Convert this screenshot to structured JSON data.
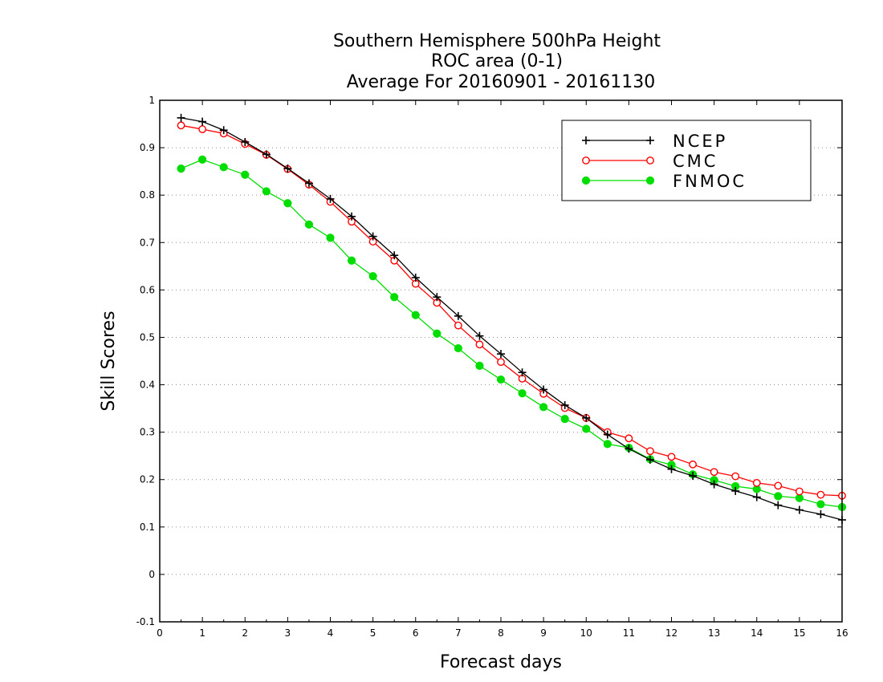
{
  "chart_data": {
    "type": "line",
    "title": [
      "Southern Hemisphere 500hPa Height",
      "ROC area (0-1)",
      "Average For 20160901 - 20161130"
    ],
    "xlabel": "Forecast days",
    "ylabel": "Skill Scores",
    "xlim": [
      0,
      16
    ],
    "ylim": [
      -0.1,
      1
    ],
    "xticks": [
      0,
      1,
      2,
      3,
      4,
      5,
      6,
      7,
      8,
      9,
      10,
      11,
      12,
      13,
      14,
      15,
      16
    ],
    "yticks": [
      -0.1,
      0,
      0.1,
      0.2,
      0.3,
      0.4,
      0.5,
      0.6,
      0.7,
      0.8,
      0.9,
      1
    ],
    "ytick_labels": [
      "-0.1",
      "0",
      "0.1",
      "0.2",
      "0.3",
      "0.4",
      "0.5",
      "0.6",
      "0.7",
      "0.8",
      "0.9",
      "1"
    ],
    "grid": "horizontal dotted",
    "legend_position": "top-right",
    "x": [
      0.5,
      1,
      1.5,
      2,
      2.5,
      3,
      3.5,
      4,
      4.5,
      5,
      5.5,
      6,
      6.5,
      7,
      7.5,
      8,
      8.5,
      9,
      9.5,
      10,
      10.5,
      11,
      11.5,
      12,
      12.5,
      13,
      13.5,
      14,
      14.5,
      15,
      15.5,
      16
    ],
    "series": [
      {
        "name": "NCEP",
        "color": "#000000",
        "marker": "plus",
        "values": [
          0.963,
          0.955,
          0.937,
          0.912,
          0.886,
          0.856,
          0.825,
          0.792,
          0.755,
          0.713,
          0.673,
          0.626,
          0.585,
          0.545,
          0.503,
          0.465,
          0.426,
          0.39,
          0.357,
          0.33,
          0.295,
          0.265,
          0.242,
          0.222,
          0.208,
          0.19,
          0.176,
          0.163,
          0.146,
          0.136,
          0.127,
          0.115
        ]
      },
      {
        "name": "CMC",
        "color": "#ff0000",
        "marker": "open-circle",
        "values": [
          0.947,
          0.939,
          0.93,
          0.908,
          0.885,
          0.855,
          0.822,
          0.786,
          0.744,
          0.702,
          0.662,
          0.613,
          0.573,
          0.525,
          0.485,
          0.448,
          0.413,
          0.381,
          0.351,
          0.33,
          0.3,
          0.287,
          0.26,
          0.248,
          0.232,
          0.216,
          0.207,
          0.193,
          0.187,
          0.175,
          0.168,
          0.166
        ]
      },
      {
        "name": "FNMOC",
        "color": "#00dd00",
        "marker": "filled-circle",
        "values": [
          0.856,
          0.875,
          0.859,
          0.843,
          0.808,
          0.783,
          0.738,
          0.71,
          0.662,
          0.629,
          0.585,
          0.547,
          0.508,
          0.477,
          0.44,
          0.411,
          0.382,
          0.353,
          0.328,
          0.307,
          0.275,
          0.267,
          0.243,
          0.231,
          0.211,
          0.199,
          0.186,
          0.18,
          0.165,
          0.161,
          0.148,
          0.142
        ]
      }
    ]
  }
}
